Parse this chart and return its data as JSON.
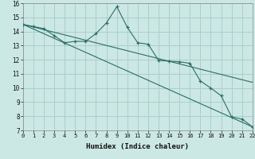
{
  "xlabel": "Humidex (Indice chaleur)",
  "background_color": "#cce8e4",
  "grid_color": "#aaceca",
  "line_color": "#2a6e65",
  "xlim": [
    0,
    22
  ],
  "ylim": [
    7,
    16
  ],
  "xticks": [
    0,
    1,
    2,
    3,
    4,
    5,
    6,
    7,
    8,
    9,
    10,
    11,
    12,
    13,
    14,
    15,
    16,
    17,
    18,
    19,
    20,
    21,
    22
  ],
  "yticks": [
    7,
    8,
    9,
    10,
    11,
    12,
    13,
    14,
    15,
    16
  ],
  "main_x": [
    0,
    1,
    2,
    3,
    4,
    5,
    6,
    7,
    8,
    9,
    10,
    11,
    12,
    13,
    14,
    15,
    16,
    17,
    18,
    19,
    20,
    21,
    22
  ],
  "main_y": [
    14.5,
    14.35,
    14.2,
    13.7,
    13.2,
    13.3,
    13.3,
    13.85,
    14.6,
    15.75,
    14.3,
    13.2,
    13.1,
    11.95,
    11.9,
    11.85,
    11.75,
    10.5,
    10.0,
    9.45,
    7.95,
    7.8,
    7.25
  ],
  "trend1_x": [
    0,
    22
  ],
  "trend1_y": [
    14.5,
    10.4
  ],
  "trend2_x": [
    0,
    22
  ],
  "trend2_y": [
    14.5,
    7.25
  ]
}
